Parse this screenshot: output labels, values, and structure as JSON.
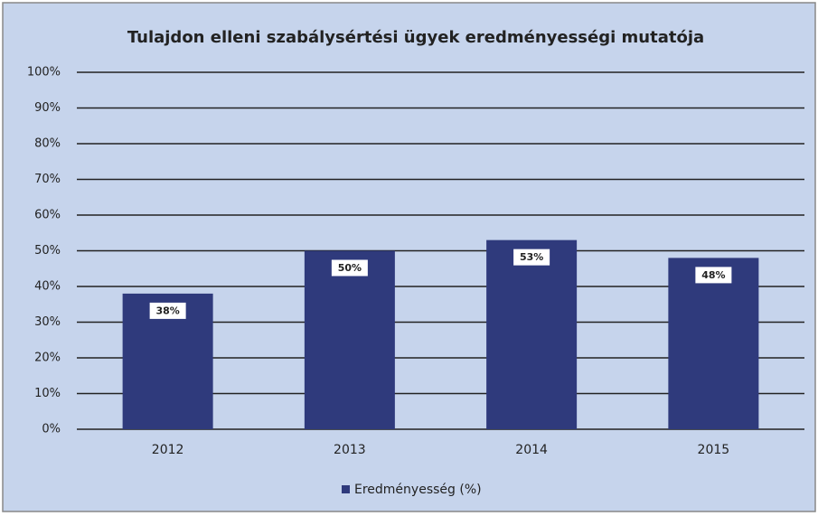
{
  "chart_data": {
    "type": "bar",
    "title": "Tulajdon elleni szabálysértési ügyek eredményességi mutatója",
    "categories": [
      "2012",
      "2013",
      "2014",
      "2015"
    ],
    "series": [
      {
        "name": "Eredményesség (%)",
        "color": "#2f3a7c",
        "values": [
          38,
          50,
          53,
          48
        ],
        "value_labels": [
          "38%",
          "50%",
          "53%",
          "48%"
        ]
      }
    ],
    "ylim": [
      0,
      100
    ],
    "yticks": [
      {
        "value": 0,
        "label": "0%"
      },
      {
        "value": 10,
        "label": "10%"
      },
      {
        "value": 20,
        "label": "20%"
      },
      {
        "value": 30,
        "label": "30%"
      },
      {
        "value": 40,
        "label": "40%"
      },
      {
        "value": 50,
        "label": "50%"
      },
      {
        "value": 60,
        "label": "60%"
      },
      {
        "value": 70,
        "label": "70%"
      },
      {
        "value": 80,
        "label": "80%"
      },
      {
        "value": 90,
        "label": "90%"
      },
      {
        "value": 100,
        "label": "100%"
      }
    ],
    "grid": true,
    "legend": "bottom"
  }
}
